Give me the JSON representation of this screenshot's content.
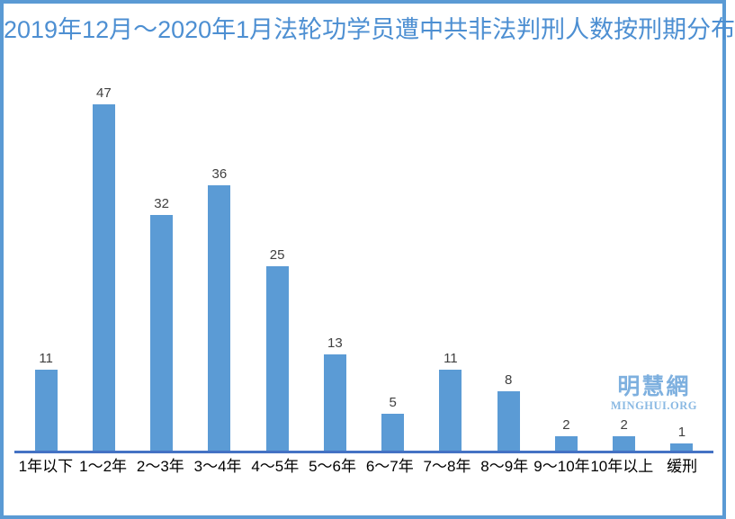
{
  "chart_data": {
    "type": "bar",
    "title": "2019年12月～2020年1月法轮功学员遭中共非法判刑人数按刑期分布",
    "categories": [
      "1年以下",
      "1～2年",
      "2～3年",
      "3～4年",
      "4～5年",
      "5～6年",
      "6～7年",
      "7～8年",
      "8～9年",
      "9～10年",
      "10年以上",
      "缓刑"
    ],
    "values": [
      11,
      47,
      32,
      36,
      25,
      13,
      5,
      11,
      8,
      2,
      2,
      1
    ],
    "xlabel": "",
    "ylabel": "",
    "ylim": [
      0,
      50
    ],
    "grid": false,
    "legend": false,
    "value_labels_shown": true,
    "colors": {
      "bar": "#5B9BD5",
      "axis_line": "#4472C4",
      "title_text": "#4D8FD2",
      "value_label_text": "#404040",
      "category_label_text": "#000000",
      "frame_border": "#5A9AD4",
      "watermark_text": "#7EB0DF"
    }
  },
  "watermark": {
    "line1": "明慧網",
    "line2": "MINGHUI.ORG"
  }
}
